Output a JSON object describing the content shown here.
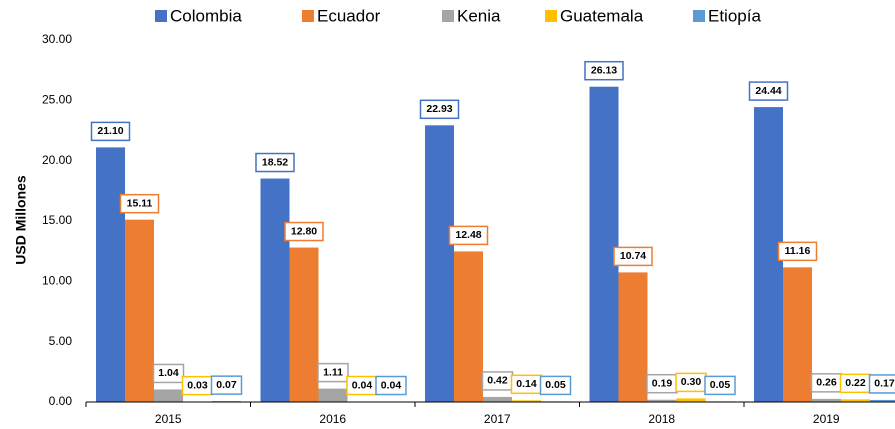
{
  "chart_data": {
    "type": "bar",
    "y_label": "USD Millones",
    "categories": [
      "2015",
      "2016",
      "2017",
      "2018",
      "2019"
    ],
    "series": [
      {
        "name": "Colombia",
        "color": "#4472c4",
        "values": [
          21.1,
          18.52,
          22.93,
          26.13,
          24.44
        ],
        "value_labels": [
          "21.10",
          "18.52",
          "22.93",
          "26.13",
          "24.44"
        ]
      },
      {
        "name": "Ecuador",
        "color": "#ed7d31",
        "values": [
          15.11,
          12.8,
          12.48,
          10.74,
          11.16
        ],
        "value_labels": [
          "15.11",
          "12.80",
          "12.48",
          "10.74",
          "11.16"
        ]
      },
      {
        "name": "Kenia",
        "color": "#a5a5a5",
        "values": [
          1.04,
          1.11,
          0.42,
          0.19,
          0.26
        ],
        "value_labels": [
          "1.04",
          "1.11",
          "0.42",
          "0.19",
          "0.26"
        ]
      },
      {
        "name": "Guatemala",
        "color": "#ffc000",
        "values": [
          0.03,
          0.04,
          0.14,
          0.3,
          0.22
        ],
        "value_labels": [
          "0.03",
          "0.04",
          "0.14",
          "0.30",
          "0.22"
        ]
      },
      {
        "name": "Etiopía",
        "color": "#5b9bd5",
        "values": [
          0.07,
          0.04,
          0.05,
          0.05,
          0.17
        ],
        "value_labels": [
          "0.07",
          "0.04",
          "0.05",
          "0.05",
          "0.17"
        ]
      }
    ],
    "ylim": [
      0,
      30
    ],
    "yticks": [
      {
        "value": 0,
        "label": "0.00"
      },
      {
        "value": 5,
        "label": "5.00"
      },
      {
        "value": 10,
        "label": "10.00"
      },
      {
        "value": 15,
        "label": "15.00"
      },
      {
        "value": 20,
        "label": "20.00"
      },
      {
        "value": 25,
        "label": "25.00"
      },
      {
        "value": 30,
        "label": "30.00"
      }
    ],
    "grid": false,
    "legend": "top"
  }
}
